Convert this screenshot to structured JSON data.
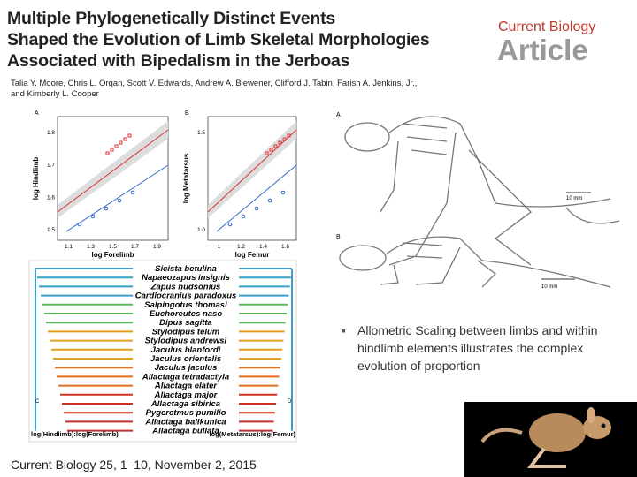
{
  "header": {
    "title_lines": [
      "Multiple Phylogenetically Distinct Events",
      "Shaped the Evolution of Limb Skeletal Morphologies",
      "Associated with Bipedalism in the Jerboas"
    ],
    "journal": "Current Biology",
    "article_type": "Article",
    "authors": [
      "Talia Y. Moore, Chris L. Organ, Scott V. Edwards, Andrew A. Biewener, Clifford J. Tabin, Farish A. Jenkins, Jr.,",
      "and Kimberly L. Cooper"
    ]
  },
  "figure": {
    "panel_a": {
      "label": "A",
      "x_label": "log Forelimb",
      "y_label": "log Hindlimb",
      "x_ticks": [
        "1.1",
        "1.3",
        "1.5",
        "1.7",
        "1.9"
      ],
      "y_ticks": [
        "1.8",
        "1.7",
        "1.6",
        "1.5"
      ]
    },
    "panel_b": {
      "label": "B",
      "x_label": "log Femur",
      "y_label": "log Metatarsus",
      "x_ticks": [
        "1",
        "1.2",
        "1.4",
        "1.6"
      ],
      "y_ticks": [
        "1.5",
        "1.0"
      ]
    },
    "tree": {
      "species": [
        "Sicista betulina",
        "Napaeozapus insignis",
        "Zapus hudsonius",
        "Cardiocranius paradoxus",
        "Salpingotus thomasi",
        "Euchoreutes naso",
        "Dipus sagitta",
        "Stylodipus telum",
        "Stylodipus andrewsi",
        "Jaculus blanfordi",
        "Jaculus orientalis",
        "Jaculus jaculus",
        "Allactaga tetradactyla",
        "Allactaga elater",
        "Allactaga major",
        "Allactaga sibirica",
        "Pygeretmus pumilio",
        "Allactaga balikunica",
        "Allactaga bullata"
      ],
      "label_c": "C",
      "label_d": "D",
      "x_label_c": "log(Hindlimb):log(Forelimb)",
      "x_label_d": "log(Metatarsus):log(Femur)"
    },
    "skeletons": {
      "label_a": "A",
      "label_b": "B",
      "scale_a": "10 mm",
      "scale_b": "10 mm"
    }
  },
  "bullet": "Allometric Scaling between limbs and within hindlimb elements illustrates the complex evolution of proportion",
  "citation": "Current Biology 25, 1–10, November 2, 2015"
}
